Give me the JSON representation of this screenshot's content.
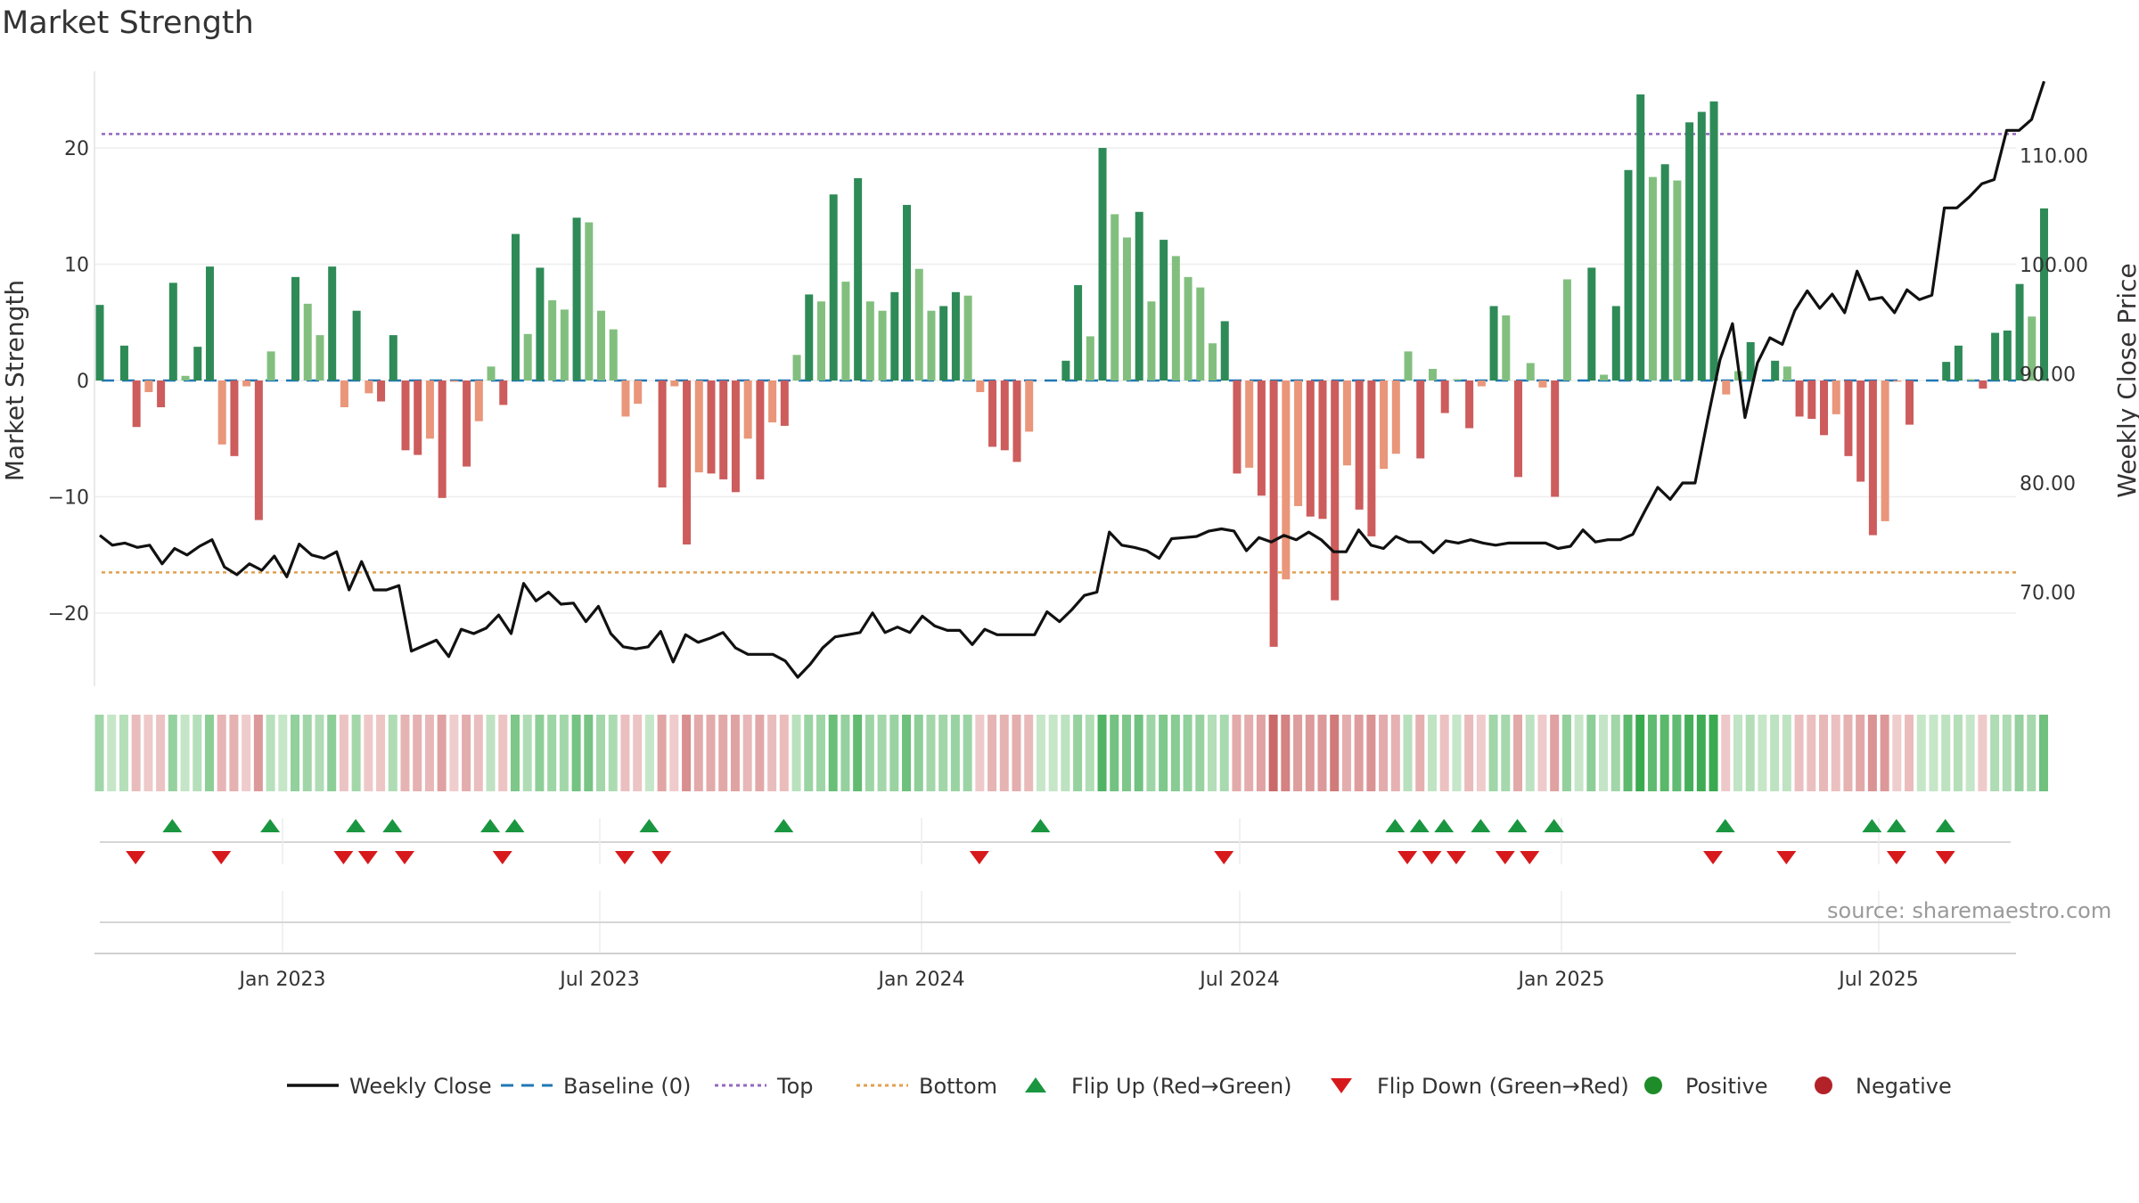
{
  "title": "Market Strength",
  "source": "source: sharemaestro.com",
  "chart_data": {
    "type": "bar",
    "y_left": {
      "label": "Market Strength",
      "ticks": [
        -20,
        -10,
        0,
        10,
        20
      ],
      "range": [
        -26,
        27
      ]
    },
    "y_right": {
      "label": "Weekly Close Price",
      "ticks": [
        "70.00",
        "80.00",
        "90.00",
        "100.00",
        "110.00"
      ],
      "tick_values": [
        70,
        80,
        90,
        100,
        110
      ],
      "range": [
        62.1,
        120.6
      ]
    },
    "x_ticks": [
      "Jan 2023",
      "Jul 2023",
      "Jan 2024",
      "Jul 2024",
      "Jan 2025",
      "Jul 2025"
    ],
    "x_tick_weeks": [
      15,
      41,
      67.5,
      93.5,
      120,
      146
    ],
    "reference_lines": {
      "top": 21.2,
      "bottom": -16.5
    },
    "strength": [
      6.5,
      0,
      3,
      -4,
      -1,
      -2.3,
      8.4,
      0.4,
      2.9,
      9.8,
      -5.5,
      -6.5,
      -0.5,
      -12,
      2.5,
      0,
      8.9,
      6.6,
      3.9,
      9.8,
      -2.3,
      6,
      -1.1,
      -1.8,
      3.9,
      -6,
      -6.4,
      -5,
      -10.1,
      -0.1,
      -7.4,
      -3.5,
      1.2,
      -2.1,
      12.6,
      4,
      9.7,
      6.9,
      6.1,
      14,
      13.6,
      6,
      4.4,
      -3.1,
      -2,
      0,
      -9.2,
      -0.5,
      -14.1,
      -7.9,
      -8,
      -8.5,
      -9.6,
      -5,
      -8.5,
      -3.6,
      -3.9,
      2.2,
      7.4,
      6.8,
      16,
      8.5,
      17.4,
      6.8,
      6,
      7.6,
      15.1,
      9.6,
      6,
      6.4,
      7.6,
      7.3,
      -1,
      -5.7,
      -6,
      -7,
      -4.4,
      0,
      0,
      1.7,
      8.2,
      3.8,
      20,
      14.3,
      12.3,
      14.5,
      6.8,
      12.1,
      10.7,
      8.9,
      8,
      3.2,
      5.1,
      -8,
      -7.5,
      -9.9,
      -22.9,
      -17.1,
      -10.8,
      -11.7,
      -11.9,
      -18.9,
      -7.3,
      -11.1,
      -13.4,
      -7.6,
      -6.3,
      2.5,
      -6.7,
      1,
      -2.8,
      0.1,
      -4.1,
      -0.5,
      6.4,
      5.6,
      -8.3,
      1.5,
      -0.6,
      -10,
      8.7,
      0,
      9.7,
      0.5,
      6.4,
      18.1,
      24.6,
      17.5,
      18.6,
      17.2,
      22.2,
      23.1,
      24
    ],
    "strength_tail": [
      -1.2,
      0.8,
      3.3,
      0,
      1.7,
      1.2,
      -3.1,
      -3.3,
      -4.7,
      -2.9,
      -6.5,
      -8.7,
      -13.3,
      -12.1,
      -0.1,
      -3.8,
      0,
      0,
      1.6,
      3,
      0.1,
      -0.7,
      4.1,
      4.3,
      8.3,
      5.5,
      14.8
    ],
    "close": [
      75.2,
      74.3,
      74.5,
      74.1,
      74.3,
      72.6,
      74,
      73.4,
      74.2,
      74.8,
      72.3,
      71.6,
      72.6,
      72,
      73.3,
      71.4,
      74.4,
      73.4,
      73.1,
      73.7,
      70.2,
      72.8,
      70.2,
      70.2,
      70.6,
      64.6,
      65.1,
      65.6,
      64.1,
      66.6,
      66.2,
      66.7,
      67.9,
      66.2,
      70.8,
      69.2,
      70,
      68.9,
      69,
      67.3,
      68.7,
      66.2,
      65,
      64.8,
      65,
      66.4,
      63.6,
      66.1,
      65.4,
      65.8,
      66.3,
      64.9,
      64.3,
      64.3,
      64.3,
      63.7,
      62.2,
      63.4,
      64.9,
      65.9,
      66.1,
      66.3,
      68.1,
      66.3,
      66.8,
      66.3,
      67.8,
      66.9,
      66.5,
      66.5,
      65.2,
      66.6,
      66.1,
      66.1,
      66.1,
      66.1,
      68.2,
      67.3,
      68.4,
      69.7,
      70,
      75.5,
      74.3,
      74.1,
      73.8,
      73.1,
      74.9,
      75,
      75.1,
      75.6,
      75.8,
      75.6,
      73.8,
      75,
      74.6,
      75.2,
      74.8,
      75.5,
      74.8,
      73.7,
      73.7,
      75.7,
      74.3,
      74,
      75.1,
      74.6,
      74.6,
      73.6,
      74.7,
      74.5,
      74.8,
      74.5,
      74.3,
      74.5,
      74.5,
      74.5,
      74.5,
      74,
      74.2,
      75.7,
      74.6,
      74.8,
      74.8,
      75.3,
      77.5,
      79.6,
      78.5,
      80,
      80,
      85.8,
      91.3,
      94.6,
      86,
      91,
      93.3,
      92.7,
      95.8,
      97.6,
      96,
      97.3,
      95.6,
      99.4,
      96.8,
      97,
      95.6,
      97.7,
      96.8,
      97.2,
      105.2,
      105.2,
      106.2,
      107.4,
      107.8,
      112.3,
      112.3,
      113.3,
      116.8
    ],
    "heat_strength": [
      6.5,
      0,
      3,
      -4,
      -1,
      -2.3,
      8.4,
      0.4,
      2.9,
      9.8,
      -5.5,
      -6.5,
      -0.5,
      -12,
      2.5,
      0,
      8.9,
      6.6,
      3.9,
      9.8,
      -2.3,
      6,
      -1.1,
      -1.8,
      3.9,
      -6,
      -6.4,
      -5,
      -10.1,
      -0.1,
      -7.4,
      -3.5,
      1.2,
      -2.1,
      12.6,
      4,
      9.7,
      6.9,
      6.1,
      14,
      13.6,
      6,
      4.4,
      -3.1,
      -2,
      0,
      -9.2,
      -0.5,
      -14.1,
      -7.9,
      -8,
      -8.5,
      -9.6,
      -5,
      -8.5,
      -3.6,
      -3.9,
      2.2,
      7.4,
      6.8,
      16,
      8.5,
      17.4,
      6.8,
      6,
      7.6,
      15.1,
      9.6,
      6,
      6.4,
      7.6,
      7.3,
      -1,
      -5.7,
      -6,
      -7,
      -4.4,
      0,
      0,
      1.7,
      8.2,
      3.8,
      20,
      14.3,
      12.3,
      14.5,
      6.8,
      12.1,
      10.7,
      8.9,
      8,
      3.2,
      5.1,
      -8,
      -7.5,
      -9.9,
      -22.9,
      -17.1,
      -10.8,
      -11.7,
      -11.9,
      -18.9,
      -7.3,
      -11.1,
      -13.4,
      -7.6,
      -6.3,
      2.5,
      -6.7,
      1,
      -2.8,
      0.1,
      -4.1,
      -0.5,
      6.4,
      5.6,
      -8.3,
      1.5,
      -0.6,
      -10,
      8.7,
      0,
      9.7,
      0.5,
      6.4,
      18.1,
      24.6,
      17.5,
      18.6,
      17.2,
      22.2,
      23.1,
      24,
      -1.2,
      0.8,
      3.3,
      0,
      1.7,
      1.2,
      -3.1,
      -3.3,
      -4.7,
      -2.9,
      -6.5,
      -8.7,
      -13.3,
      -12.1,
      -0.1,
      -3.8,
      0,
      0,
      1.6,
      3,
      0.1,
      -0.7,
      4.1,
      4.3,
      8.3,
      5.5,
      14.8
    ],
    "flip_up_weeks": [
      6,
      14,
      21,
      24,
      32,
      34,
      45,
      56,
      77,
      106,
      108,
      110,
      113,
      116,
      119,
      133,
      145,
      147,
      151
    ],
    "flip_down_weeks": [
      3,
      10,
      20,
      22,
      25,
      33,
      43,
      46,
      72,
      92,
      107,
      109,
      111,
      115,
      117,
      132,
      138,
      147,
      151
    ],
    "colors": {
      "strong_green": "#2e8b57",
      "light_green": "#82bf7f",
      "strong_red": "#cd5c5c",
      "light_red": "#e9967a",
      "line": "#111111",
      "baseline": "#1f77b4",
      "top": "#9467bd",
      "bottom": "#e0a050",
      "flip_up": "#1a9641",
      "flip_down": "#d7191c",
      "positive": "#1e8c28",
      "negative": "#b22228"
    }
  },
  "legend": [
    {
      "label": "Weekly Close",
      "kind": "line-solid",
      "color": "#111111"
    },
    {
      "label": "Baseline (0)",
      "kind": "line-dash",
      "color": "#1f77b4"
    },
    {
      "label": "Top",
      "kind": "line-dot",
      "color": "#9467bd"
    },
    {
      "label": "Bottom",
      "kind": "line-dot",
      "color": "#e0a050"
    },
    {
      "label": "Flip Up (Red→Green)",
      "kind": "tri-up",
      "color": "#1a9641"
    },
    {
      "label": "Flip Down (Green→Red)",
      "kind": "tri-down",
      "color": "#d7191c"
    },
    {
      "label": "Positive",
      "kind": "dot",
      "color": "#1e8c28"
    },
    {
      "label": "Negative",
      "kind": "dot",
      "color": "#b22228"
    }
  ]
}
